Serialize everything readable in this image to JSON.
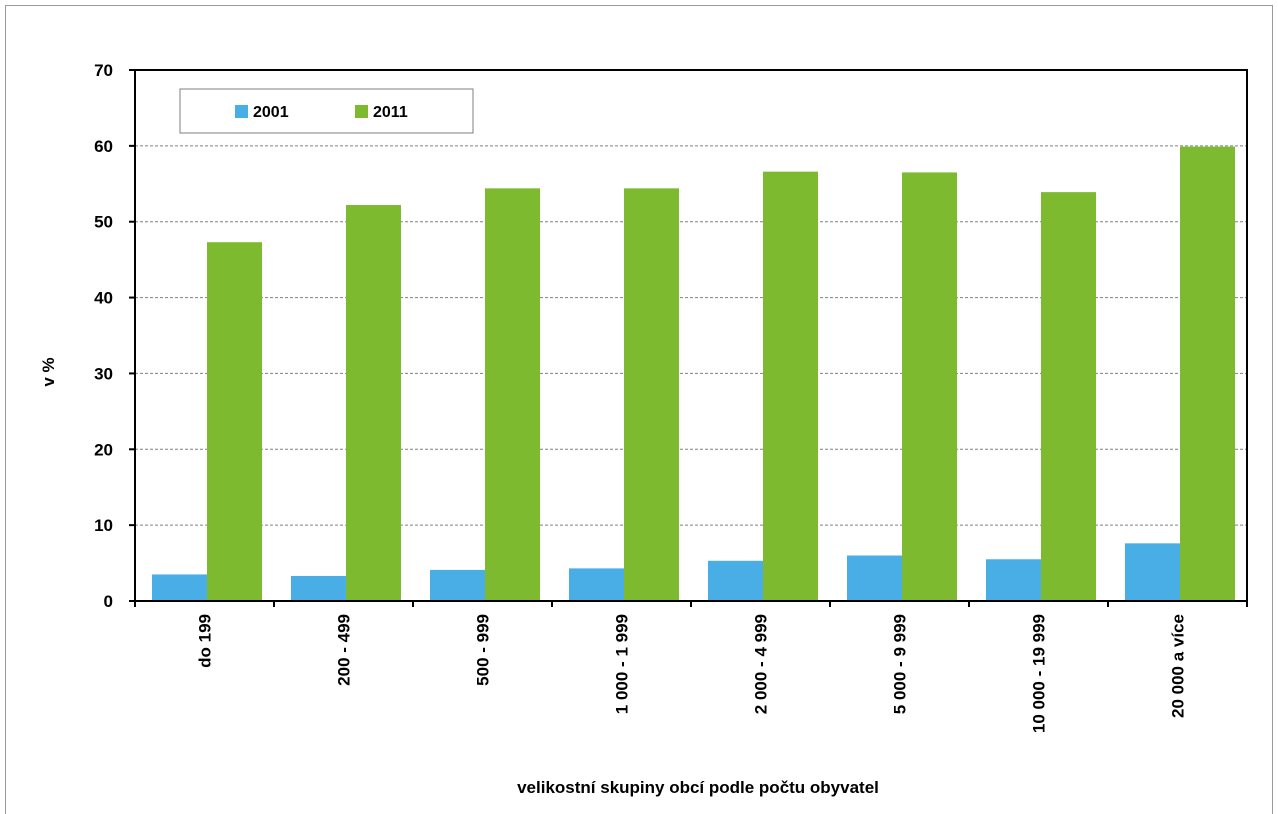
{
  "chart_data": {
    "type": "bar",
    "title": "",
    "xlabel": "velikostní skupiny obcí podle počtu obyvatel",
    "ylabel": "v %",
    "ylim": [
      0,
      70
    ],
    "yticks": [
      0,
      10,
      20,
      30,
      40,
      50,
      60,
      70
    ],
    "grid": true,
    "legend_position": "top-left",
    "categories": [
      "do  199",
      "200 - 499",
      "500 - 999",
      "1 000 - 1 999",
      "2 000 - 4 999",
      "5 000 - 9 999",
      "10 000 - 19 999",
      "20 000 a více"
    ],
    "series": [
      {
        "name": "2001",
        "color": "#4aaee6",
        "values": [
          3.5,
          3.3,
          4.1,
          4.3,
          5.3,
          6.0,
          5.5,
          7.6
        ]
      },
      {
        "name": "2011",
        "color": "#7dba2f",
        "values": [
          47.3,
          52.2,
          54.4,
          54.4,
          56.6,
          56.5,
          53.9,
          59.9
        ]
      }
    ]
  }
}
